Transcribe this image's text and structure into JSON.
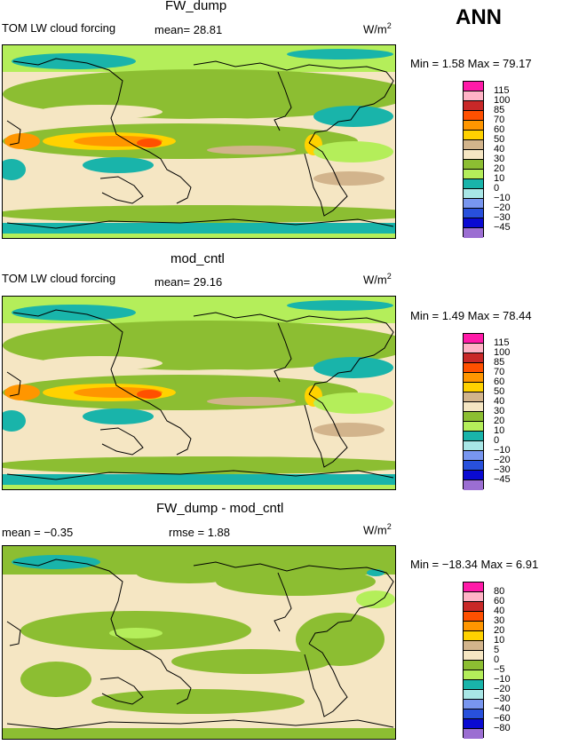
{
  "header": {
    "season": "ANN"
  },
  "panels": [
    {
      "title": "FW_dump",
      "subtitle": "TOM LW cloud forcing",
      "stat1": "mean=  28.81",
      "stat2": "",
      "units": "W/m",
      "units_sup": "2",
      "minmax": "Min =   1.58  Max =  79.17",
      "colorbar": {
        "labels": [
          "115",
          "100",
          "85",
          "70",
          "60",
          "50",
          "40",
          "30",
          "20",
          "10",
          "0",
          "−10",
          "−20",
          "−30",
          "−45"
        ],
        "colors": [
          "#ff1aa8",
          "#ffb3c6",
          "#c82828",
          "#ff5000",
          "#ff9600",
          "#ffd200",
          "#d2b48c",
          "#f5e6c3",
          "#8cbe32",
          "#b4ee5a",
          "#19b4aa",
          "#a8e6e6",
          "#7896f0",
          "#2850dc",
          "#0a0ad2",
          "#9b6ed2"
        ]
      }
    },
    {
      "title": "mod_cntl",
      "subtitle": "TOM LW cloud forcing",
      "stat1": "mean=  29.16",
      "stat2": "",
      "units": "W/m",
      "units_sup": "2",
      "minmax": "Min =   1.49  Max =  78.44",
      "colorbar": {
        "labels": [
          "115",
          "100",
          "85",
          "70",
          "60",
          "50",
          "40",
          "30",
          "20",
          "10",
          "0",
          "−10",
          "−20",
          "−30",
          "−45"
        ],
        "colors": [
          "#ff1aa8",
          "#ffb3c6",
          "#c82828",
          "#ff5000",
          "#ff9600",
          "#ffd200",
          "#d2b48c",
          "#f5e6c3",
          "#8cbe32",
          "#b4ee5a",
          "#19b4aa",
          "#a8e6e6",
          "#7896f0",
          "#2850dc",
          "#0a0ad2",
          "#9b6ed2"
        ]
      }
    },
    {
      "title": "FW_dump - mod_cntl",
      "subtitle": "",
      "stat1": "mean =  −0.35",
      "stat2": "rmse =   1.88",
      "units": "W/m",
      "units_sup": "2",
      "minmax": "Min = −18.34  Max =   6.91",
      "colorbar": {
        "labels": [
          "80",
          "60",
          "40",
          "30",
          "20",
          "10",
          "5",
          "0",
          "−5",
          "−10",
          "−20",
          "−30",
          "−40",
          "−60",
          "−80"
        ],
        "colors": [
          "#ff1aa8",
          "#ffb3c6",
          "#c82828",
          "#ff5000",
          "#ff9600",
          "#ffd200",
          "#d2b48c",
          "#f5e6c3",
          "#8cbe32",
          "#b4ee5a",
          "#19b4aa",
          "#a8e6e6",
          "#7896f0",
          "#2850dc",
          "#0a0ad2",
          "#9b6ed2"
        ]
      }
    }
  ]
}
